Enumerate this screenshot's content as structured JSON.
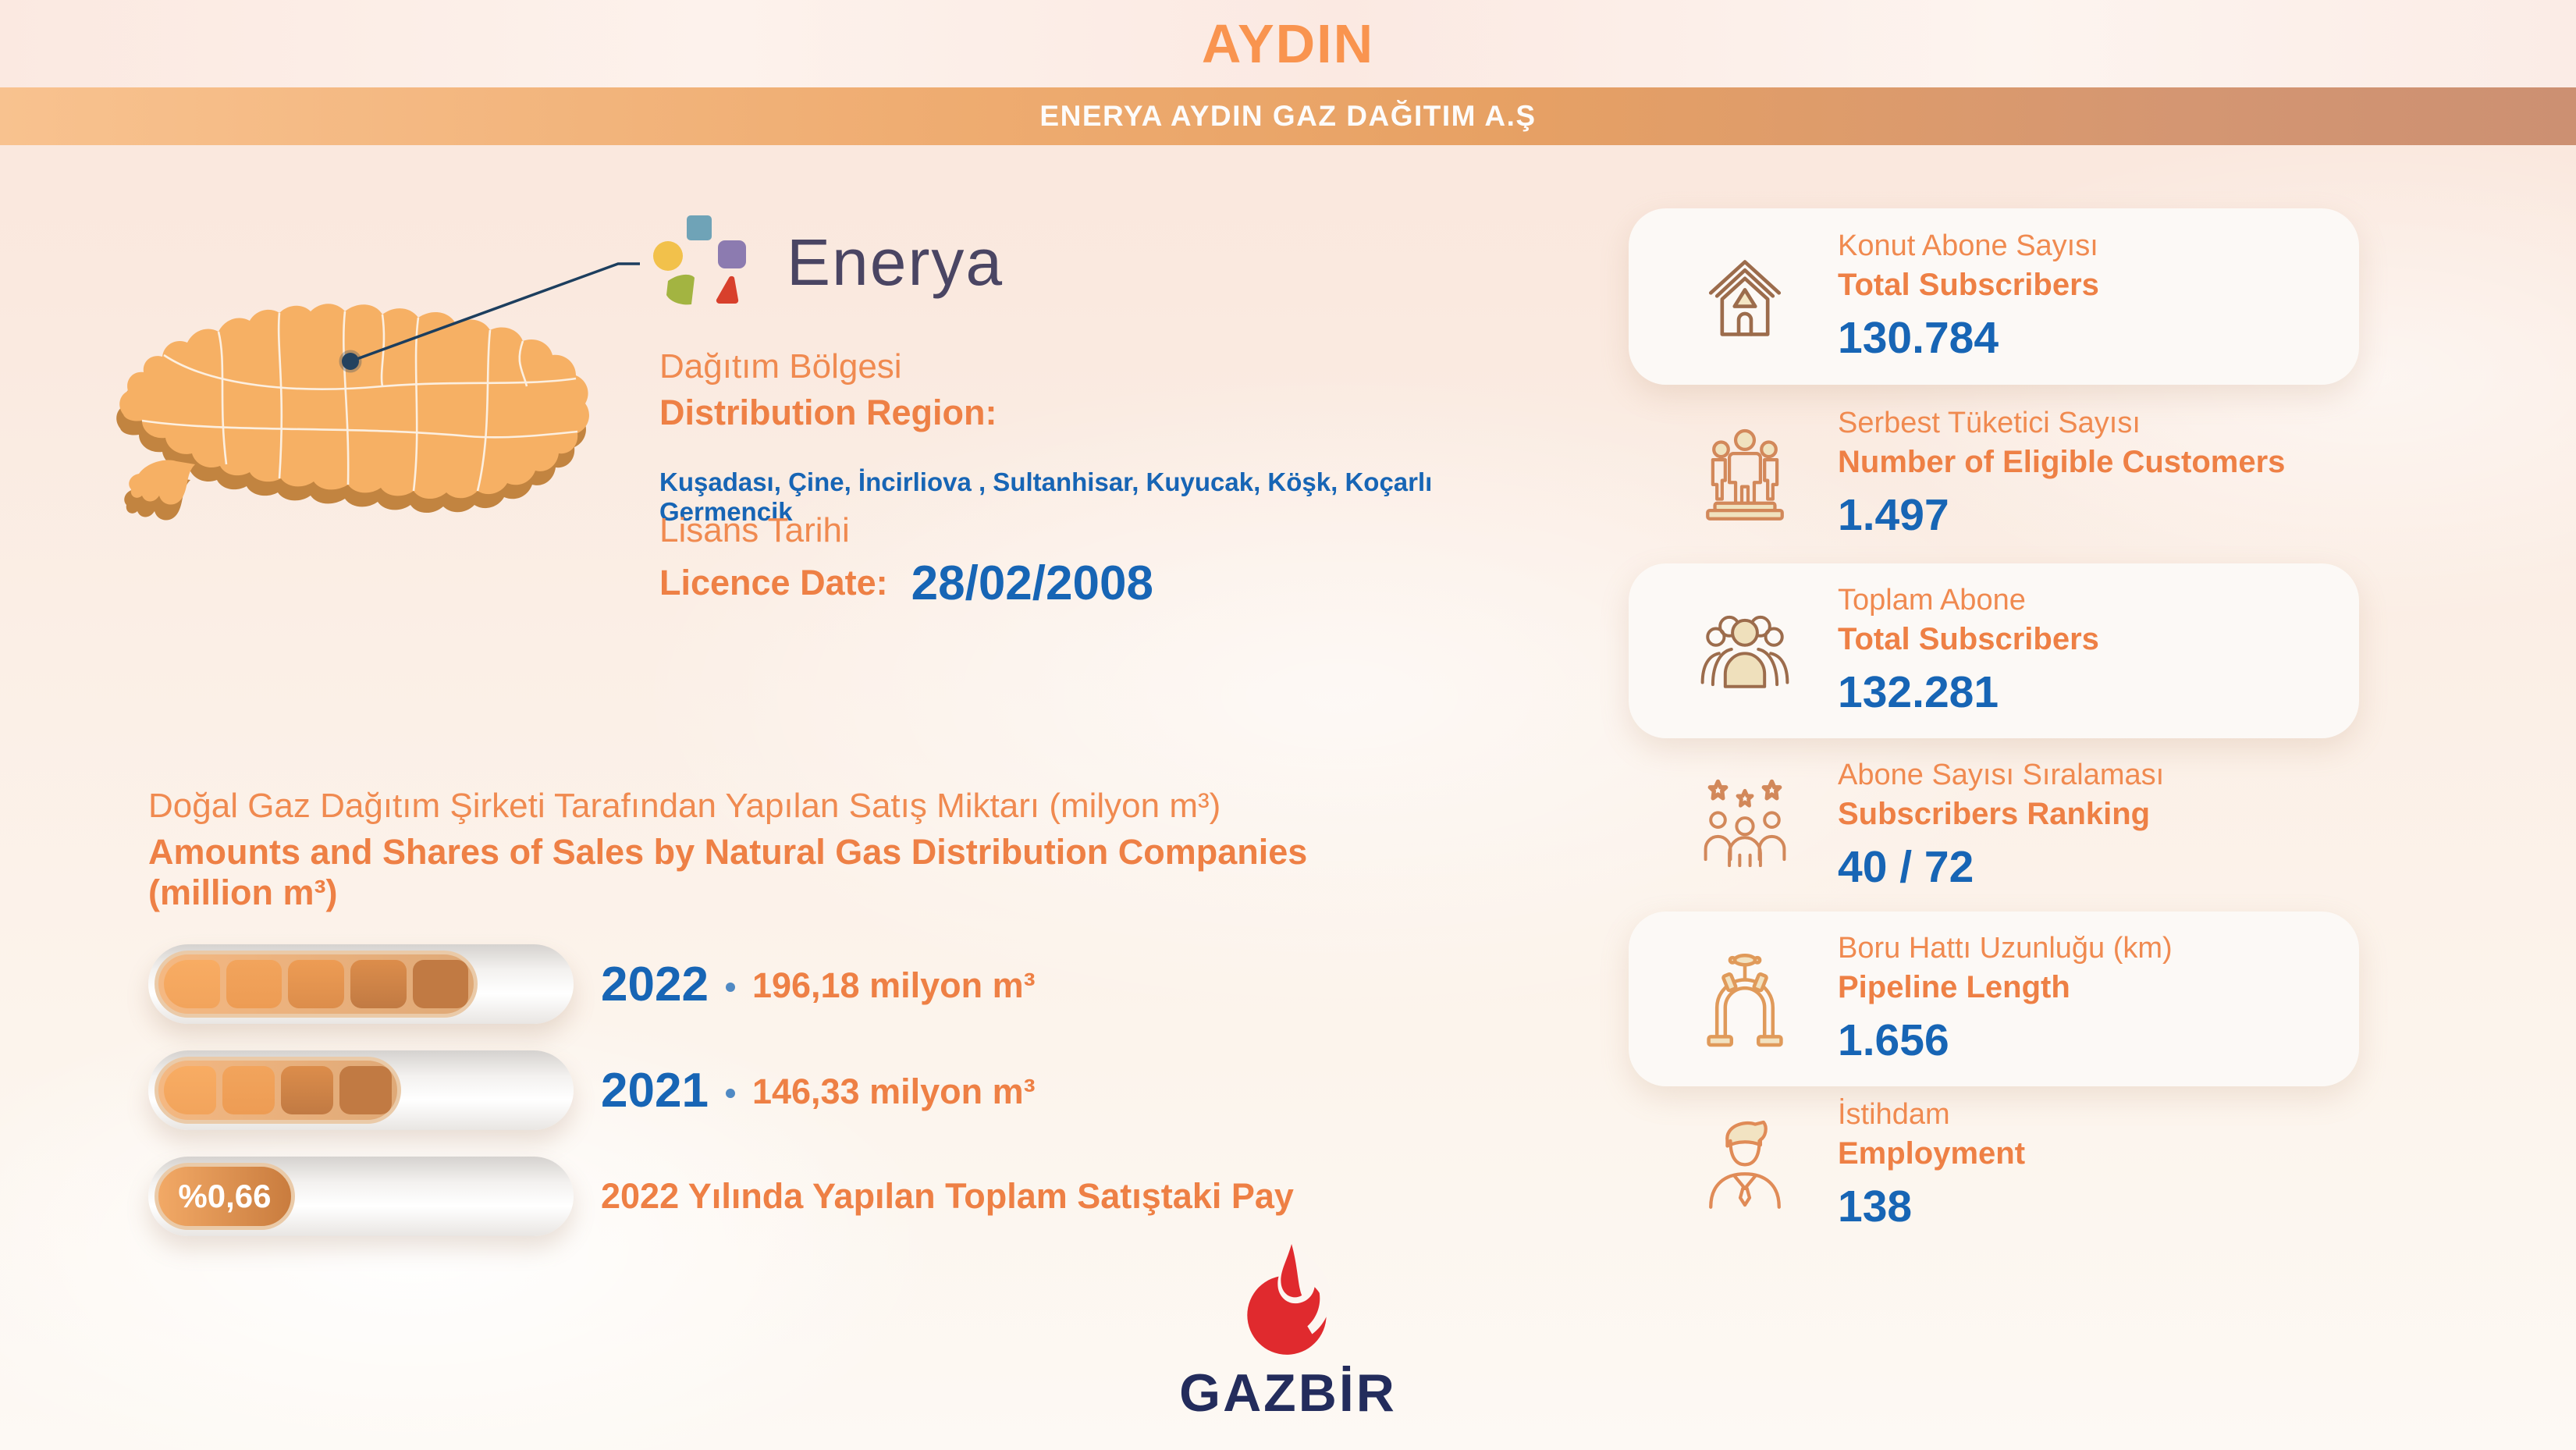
{
  "header": {
    "title": "AYDIN",
    "org": "ENERYA AYDIN GAZ DAĞITIM A.Ş"
  },
  "logo": {
    "name": "Enerya"
  },
  "region": {
    "label_tr": "Dağıtım Bölgesi",
    "label_en": "Distribution Region:",
    "districts": "Kuşadası, Çine, İncirliova , Sultanhisar, Kuyucak, Köşk, Koçarlı Germencik"
  },
  "licence": {
    "label_tr": "Lisans Tarihi",
    "label_en": "Licence Date:",
    "date": "28/02/2008"
  },
  "sales": {
    "title_tr": "Doğal Gaz Dağıtım Şirketi Tarafından Yapılan Satış Miktarı (milyon m³)",
    "title_en": "Amounts and Shares of Sales by Natural Gas Distribution Companies (million m³)"
  },
  "chart_data": {
    "type": "bar",
    "orientation": "horizontal",
    "title": "Doğal Gaz Dağıtım Şirketi Tarafından Yapılan Satış Miktarı (milyon m³) / Amounts and Shares of Sales by Natural Gas Distribution Companies (million m³)",
    "categories": [
      "2022",
      "2021"
    ],
    "values": [
      196.18,
      146.33
    ],
    "unit": "milyon m³",
    "value_labels": [
      "196,18 milyon m³",
      "146,33 milyon m³"
    ],
    "share": {
      "label": "%0,66",
      "value_percent": 0.66,
      "caption": "2022 Yılında Yapılan Toplam Satıştaki Pay"
    },
    "bar_fill_percent": [
      76,
      58,
      33
    ],
    "bar_segment_count": [
      5,
      4,
      0
    ],
    "grid": false,
    "legend": false
  },
  "bars": [
    {
      "year": "2022",
      "value": "196,18 milyon m³",
      "percent": 76,
      "segments": 5
    },
    {
      "year": "2021",
      "value": "146,33 milyon m³",
      "percent": 58,
      "segments": 4
    },
    {
      "pill": "%0,66",
      "caption": "2022 Yılında Yapılan Toplam Satıştaki Pay",
      "percent": 33,
      "segments": 0
    }
  ],
  "stats": [
    {
      "icon": "house-icon",
      "tr": "Konut Abone Sayısı",
      "en": "Total Subscribers",
      "value": "130.784"
    },
    {
      "icon": "eligible-customers-icon",
      "tr": "Serbest Tüketici Sayısı",
      "en": "Number of Eligible Customers",
      "value": "1.497"
    },
    {
      "icon": "crowd-icon",
      "tr": "Toplam Abone",
      "en": "Total Subscribers",
      "value": "132.281"
    },
    {
      "icon": "ranking-stars-icon",
      "tr": "Abone Sayısı Sıralaması",
      "en": "Subscribers Ranking",
      "value": "40 / 72"
    },
    {
      "icon": "pipeline-valve-icon",
      "tr": "Boru Hattı Uzunluğu (km)",
      "en": "Pipeline Length",
      "value": "1.656"
    },
    {
      "icon": "employee-icon",
      "tr": "İstihdam",
      "en": "Employment",
      "value": "138"
    }
  ],
  "footer": {
    "brand": "GAZBİR"
  },
  "colors": {
    "accent_orange": "#F9944F",
    "orange_regular": "#F08A50",
    "orange_bold": "#EE8045",
    "blue": "#1765B5",
    "navy": "#4A4563",
    "gazbir_navy": "#232C5C",
    "gazbir_red": "#E02A2E",
    "map_fill": "#F6B064",
    "map_side": "#C28440",
    "band_left": "#F8C28F",
    "band_right": "#CC9072",
    "segment_colors": [
      "#F8AC63",
      "#F2A45C",
      "#ED9C54",
      "#DC8D4B",
      "#C17A43"
    ]
  }
}
